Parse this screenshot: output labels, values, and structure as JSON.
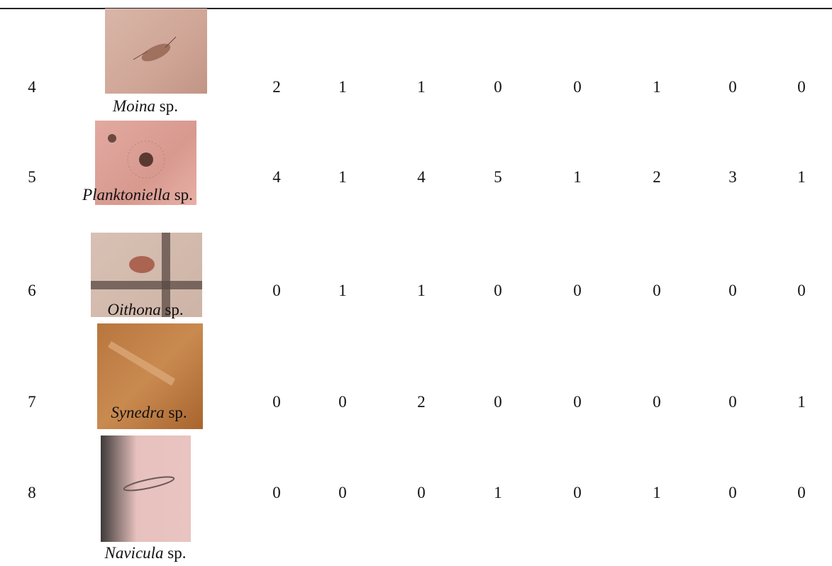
{
  "table": {
    "rows": [
      {
        "no": "4",
        "genus": "Moina",
        "suffix": "sp.",
        "counts": [
          "2",
          "1",
          "1",
          "0",
          "0",
          "1",
          "0",
          "0"
        ]
      },
      {
        "no": "5",
        "genus": "Planktoniella",
        "suffix": "sp.",
        "counts": [
          "4",
          "1",
          "4",
          "5",
          "1",
          "2",
          "3",
          "1"
        ]
      },
      {
        "no": "6",
        "genus": "Oithona",
        "suffix": "sp.",
        "counts": [
          "0",
          "1",
          "1",
          "0",
          "0",
          "0",
          "0",
          "0"
        ]
      },
      {
        "no": "7",
        "genus": "Synedra",
        "suffix": "sp.",
        "counts": [
          "0",
          "0",
          "2",
          "0",
          "0",
          "0",
          "0",
          "1"
        ]
      },
      {
        "no": "8",
        "genus": "Navicula",
        "suffix": "sp.",
        "counts": [
          "0",
          "0",
          "0",
          "1",
          "0",
          "1",
          "0",
          "0"
        ]
      }
    ]
  }
}
